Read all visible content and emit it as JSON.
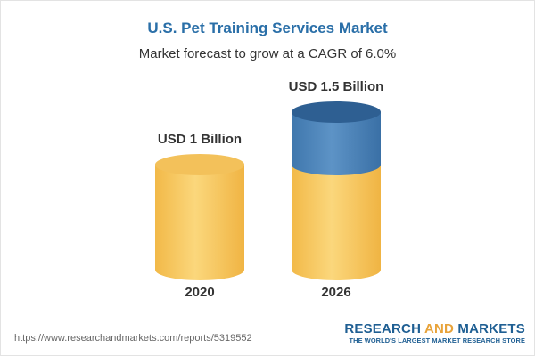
{
  "header": {
    "title": "U.S. Pet Training Services Market",
    "subtitle": "Market forecast to grow at a CAGR of 6.0%"
  },
  "chart_data": {
    "type": "bar",
    "title": "U.S. Pet Training Services Market",
    "subtitle": "Market forecast to grow at a CAGR of 6.0%",
    "categories": [
      "2020",
      "2026"
    ],
    "values": [
      1.0,
      1.5
    ],
    "unit": "USD Billion",
    "data_labels": [
      "USD 1 Billion",
      "USD 1.5 Billion"
    ],
    "base_value": 1.0,
    "increment_value": 0.5,
    "colors": {
      "base": "#f5c45e",
      "increment": "#4f86bb"
    },
    "grid": false,
    "legend": "none"
  },
  "footer": {
    "url": "https://www.researchandmarkets.com/reports/5319552",
    "brand_left": "RESEARCH",
    "brand_and": "AND",
    "brand_right": "MARKETS",
    "brand_tagline": "THE WORLD'S LARGEST MARKET RESEARCH STORE"
  }
}
